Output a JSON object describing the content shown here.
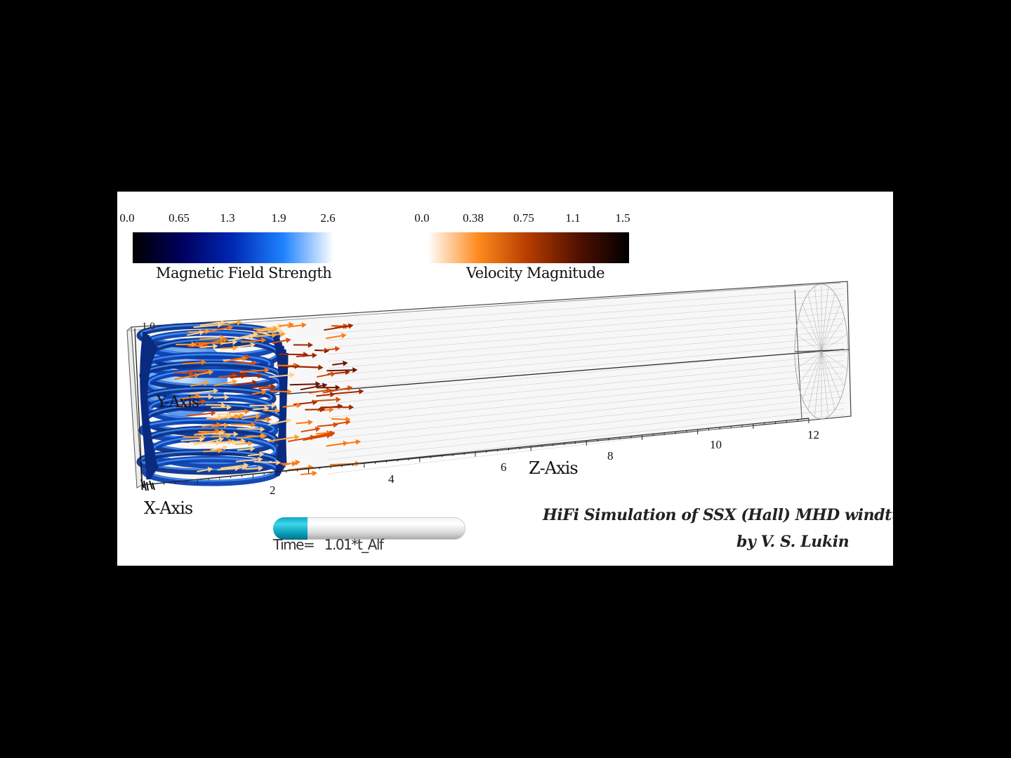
{
  "colorbars": {
    "magnetic": {
      "title": "Magnetic Field Strength",
      "ticks": [
        "0.0",
        "0.65",
        "1.3",
        "1.9",
        "2.6"
      ],
      "colors": [
        "#000000",
        "#000060",
        "#0028b4",
        "#1e82ff",
        "#ffffff"
      ]
    },
    "velocity": {
      "title": "Velocity Magnitude",
      "ticks": [
        "0.0",
        "0.38",
        "0.75",
        "1.1",
        "1.5"
      ],
      "colors": [
        "#ffffff",
        "#ff8a1e",
        "#b43c00",
        "#501000",
        "#000000"
      ]
    }
  },
  "axes": {
    "z_label": "Z-Axis",
    "x_label": "X-Axis",
    "y_label": "Y-Axis",
    "z_ticks": [
      "2",
      "4",
      "6",
      "8",
      "10",
      "12"
    ],
    "y_top_tick": "1.0"
  },
  "time": {
    "label": "Time=",
    "value": "1.01*t_Alf",
    "progress": 0.18
  },
  "caption": {
    "line1": "HiFi Simulation of SSX (Hall) MHD windtunnel",
    "line2": "by V. S. Lukin"
  },
  "colors": {
    "frame_bg": "#ffffff",
    "outer_bg": "#000000",
    "tube_line": "#c8c8c8"
  }
}
